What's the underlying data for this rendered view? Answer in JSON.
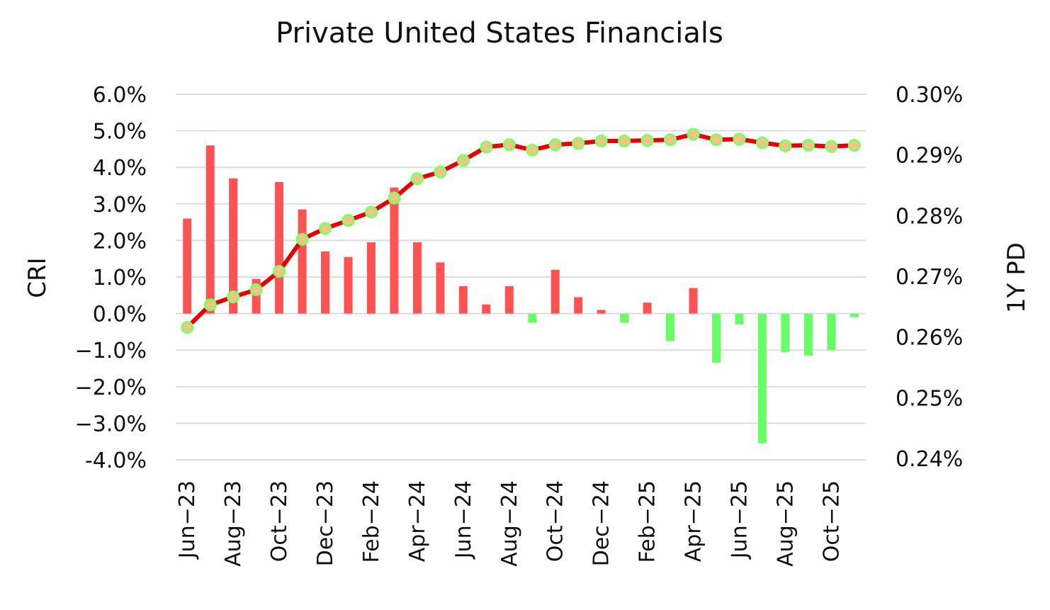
{
  "chart_data": {
    "type": "bar+line",
    "title": "Private United States Financials",
    "y_left_label": "CRI",
    "y_right_label": "1Y PD",
    "y_left_ticks": [
      "6.0%",
      "5.0%",
      "4.0%",
      "3.0%",
      "2.0%",
      "1.0%",
      "0.0%",
      "−1.0%",
      "−2.0%",
      "−3.0%",
      "-4.0%"
    ],
    "y_right_ticks": [
      "0.30%",
      "0.29%",
      "0.28%",
      "0.27%",
      "0.26%",
      "0.25%",
      "0.24%"
    ],
    "y_left_range": [
      -4.0,
      6.0
    ],
    "y_right_range": [
      0.24,
      0.3
    ],
    "grid": true,
    "x_tick_labels": [
      "Jun−23",
      "Aug−23",
      "Oct−23",
      "Dec−23",
      "Feb−24",
      "Apr−24",
      "Jun−24",
      "Aug−24",
      "Oct−24",
      "Dec−24",
      "Feb−25",
      "Apr−25",
      "Jun−25",
      "Aug−25",
      "Oct−25"
    ],
    "months": [
      "Jun-23",
      "Jul-23",
      "Aug-23",
      "Sep-23",
      "Oct-23",
      "Nov-23",
      "Dec-23",
      "Jan-24",
      "Feb-24",
      "Mar-24",
      "Apr-24",
      "May-24",
      "Jun-24",
      "Jul-24",
      "Aug-24",
      "Sep-24",
      "Oct-24",
      "Nov-24",
      "Dec-24",
      "Jan-25",
      "Feb-25",
      "Mar-25",
      "Apr-25",
      "May-25",
      "Jun-25",
      "Jul-25",
      "Aug-25",
      "Sep-25",
      "Oct-25",
      "Nov-25"
    ],
    "series": [
      {
        "name": "CRI",
        "type": "bar",
        "axis": "left",
        "unit": "%",
        "positive_color": "#ff5252",
        "negative_color": "#66ff66",
        "values": [
          2.6,
          4.6,
          3.7,
          0.95,
          3.6,
          2.85,
          1.7,
          1.55,
          1.95,
          3.45,
          1.95,
          1.4,
          0.75,
          0.25,
          0.75,
          -0.25,
          1.2,
          0.45,
          0.1,
          -0.25,
          0.3,
          -0.75,
          0.7,
          -1.35,
          -0.3,
          -3.55,
          -1.05,
          -1.15,
          -1.0,
          -0.1
        ]
      },
      {
        "name": "1Y PD",
        "type": "line",
        "axis": "right",
        "unit": "%",
        "line_color": "#e60000",
        "marker_fill": "#f2c48a",
        "marker_edge": "#7dff5e",
        "values": [
          0.2616,
          0.2653,
          0.2666,
          0.2678,
          0.2708,
          0.2761,
          0.2779,
          0.2792,
          0.2806,
          0.2829,
          0.2861,
          0.2872,
          0.2891,
          0.2913,
          0.2917,
          0.2908,
          0.2917,
          0.2919,
          0.2923,
          0.2923,
          0.2924,
          0.2925,
          0.2934,
          0.2925,
          0.2926,
          0.292,
          0.2915,
          0.2916,
          0.2914,
          0.2916
        ]
      }
    ]
  }
}
